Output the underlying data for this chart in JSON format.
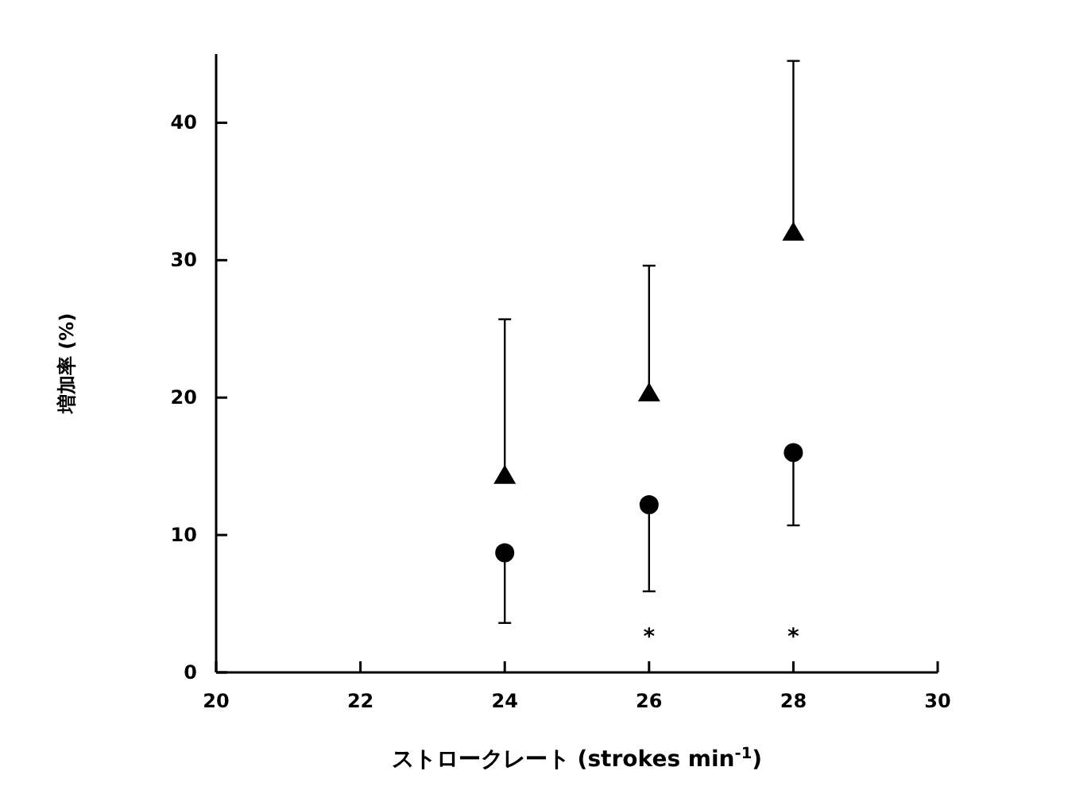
{
  "chart_data": {
    "type": "scatter",
    "xlabel": "ストロークレート (strokes min$^{-1}$)",
    "ylabel": "増加率 (%)",
    "x": [
      24,
      26,
      28
    ],
    "xlim": [
      20,
      30
    ],
    "xticks": [
      20,
      22,
      24,
      26,
      28,
      30
    ],
    "ylim": [
      0,
      45
    ],
    "yticks": [
      0,
      10,
      20,
      30,
      40
    ],
    "grid": false,
    "series": [
      {
        "color": "#000000",
        "marker": "triangle",
        "values": [
          14.3,
          20.3,
          32.0
        ],
        "errors": [
          [
            14.3,
            25.7
          ],
          [
            20.3,
            29.6
          ],
          [
            32.0,
            44.5
          ]
        ]
      },
      {
        "color": "#000000",
        "marker": "circle",
        "values": [
          8.7,
          12.2,
          16.0
        ],
        "errors": [
          [
            3.6,
            8.7
          ],
          [
            5.9,
            12.2
          ],
          [
            10.7,
            16.0
          ]
        ]
      }
    ],
    "annotations": [
      "*",
      "*"
    ]
  }
}
